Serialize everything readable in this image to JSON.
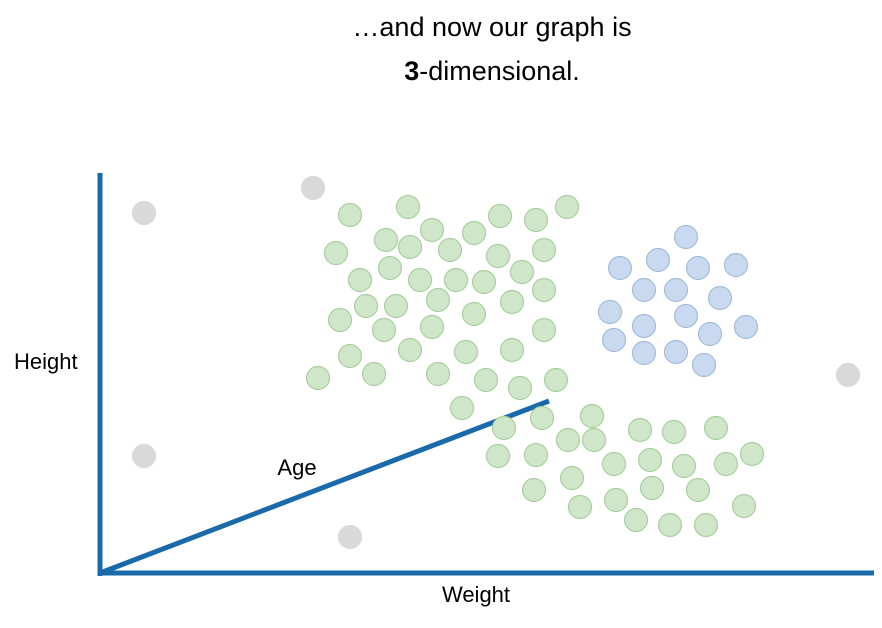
{
  "title": {
    "line1": "…and now our graph is",
    "bold": "3",
    "rest": "-dimensional."
  },
  "axes": {
    "y_label": "Height",
    "x_label": "Weight",
    "z_label": "Age"
  }
}
